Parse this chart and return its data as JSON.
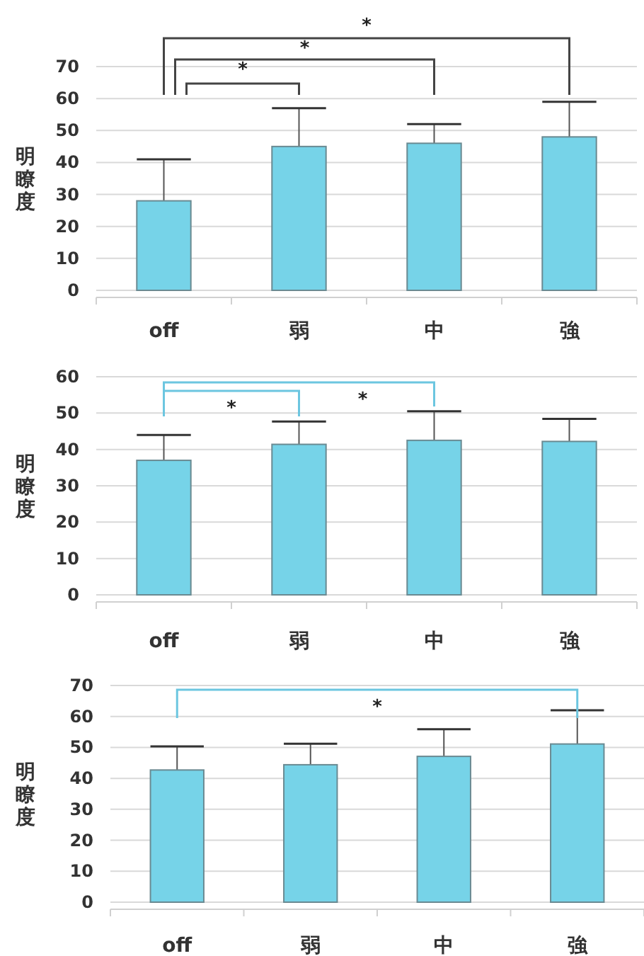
{
  "chart_data": [
    {
      "type": "bar",
      "ylabel": "明瞭度",
      "categories": [
        "off",
        "弱",
        "中",
        "強"
      ],
      "values": [
        28,
        45,
        46,
        48
      ],
      "color": "#76d3e8",
      "errors": [
        [
          28,
          41
        ],
        [
          45,
          57
        ],
        [
          46,
          52
        ],
        [
          48,
          59
        ]
      ],
      "ylim": [
        0,
        70
      ],
      "yticks": [
        0,
        10,
        20,
        30,
        40,
        50,
        60,
        70
      ],
      "grid": "y",
      "annotations": [
        "*",
        "*",
        "*"
      ]
    },
    {
      "type": "bar",
      "ylabel": "明瞭度",
      "categories": [
        "off",
        "弱",
        "中",
        "強"
      ],
      "values": [
        37,
        41.4,
        42.5,
        42.2
      ],
      "color": "#76d3e8",
      "errors": [
        [
          37,
          44
        ],
        [
          41.4,
          47.7
        ],
        [
          42.5,
          50.5
        ],
        [
          42.2,
          48.4
        ]
      ],
      "ylim": [
        0,
        60
      ],
      "yticks": [
        0,
        10,
        20,
        30,
        40,
        50,
        60
      ],
      "grid": "y",
      "annotations": [
        "*",
        "*"
      ]
    },
    {
      "type": "bar",
      "ylabel": "明瞭度",
      "categories": [
        "off",
        "弱",
        "中",
        "強"
      ],
      "values": [
        42.7,
        44.4,
        47.1,
        51.1
      ],
      "color": "#76d3e8",
      "errors": [
        [
          42.7,
          50.3
        ],
        [
          44.4,
          51.2
        ],
        [
          47.1,
          55.9
        ],
        [
          51.1,
          62
        ]
      ],
      "ylim": [
        0,
        70
      ],
      "yticks": [
        0,
        10,
        20,
        30,
        40,
        50,
        60,
        70
      ],
      "grid": "y",
      "annotations": [
        "*"
      ]
    }
  ]
}
